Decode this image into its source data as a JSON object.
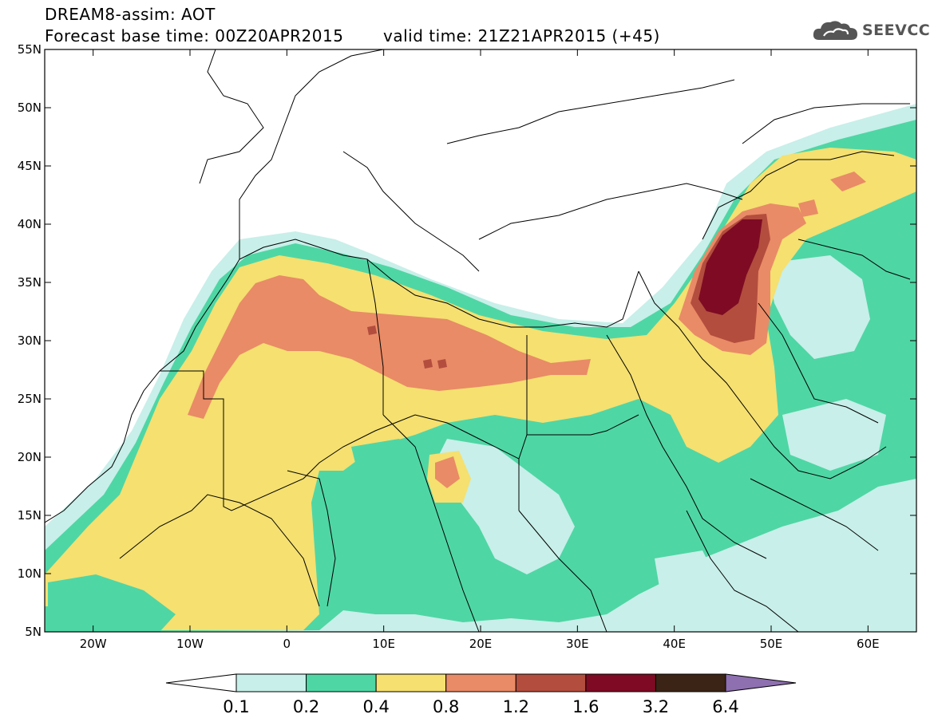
{
  "header": {
    "title_line1": "DREAM8-assim: AOT",
    "title_line2": "Forecast base time: 00Z20APR2015",
    "valid_time": "valid time: 21Z21APR2015 (+45)"
  },
  "logo": {
    "text": "SEEVCCC",
    "icon": "cloud-icon"
  },
  "map": {
    "lon_range": [
      -25,
      65
    ],
    "lat_range": [
      5,
      55
    ],
    "lat_ticks": [
      {
        "value": 55,
        "label": "55N"
      },
      {
        "value": 50,
        "label": "50N"
      },
      {
        "value": 45,
        "label": "45N"
      },
      {
        "value": 40,
        "label": "40N"
      },
      {
        "value": 35,
        "label": "35N"
      },
      {
        "value": 30,
        "label": "30N"
      },
      {
        "value": 25,
        "label": "25N"
      },
      {
        "value": 20,
        "label": "20N"
      },
      {
        "value": 15,
        "label": "15N"
      },
      {
        "value": 10,
        "label": "10N"
      },
      {
        "value": 5,
        "label": "5N"
      }
    ],
    "lon_ticks": [
      {
        "value": -20,
        "label": "20W"
      },
      {
        "value": -10,
        "label": "10W"
      },
      {
        "value": 0,
        "label": "0"
      },
      {
        "value": 10,
        "label": "10E"
      },
      {
        "value": 20,
        "label": "20E"
      },
      {
        "value": 30,
        "label": "30E"
      },
      {
        "value": 40,
        "label": "40E"
      },
      {
        "value": 50,
        "label": "50E"
      },
      {
        "value": 60,
        "label": "60E"
      }
    ]
  },
  "colorbar": {
    "colors": [
      "#ffffff",
      "#c8efe9",
      "#4fd6a5",
      "#f5e070",
      "#e98b66",
      "#b34d3e",
      "#7e0b23",
      "#3b2415",
      "#8e6fb0"
    ],
    "labels": [
      "0.1",
      "0.2",
      "0.4",
      "0.8",
      "1.2",
      "1.6",
      "3.2",
      "6.4"
    ]
  },
  "colors": {
    "level_01": "#c8efe9",
    "level_02": "#4fd6a5",
    "level_04": "#f5e070",
    "level_08": "#e98b66",
    "level_12": "#b34d3e",
    "level_16": "#7e0b23",
    "land_white": "#ffffff"
  }
}
